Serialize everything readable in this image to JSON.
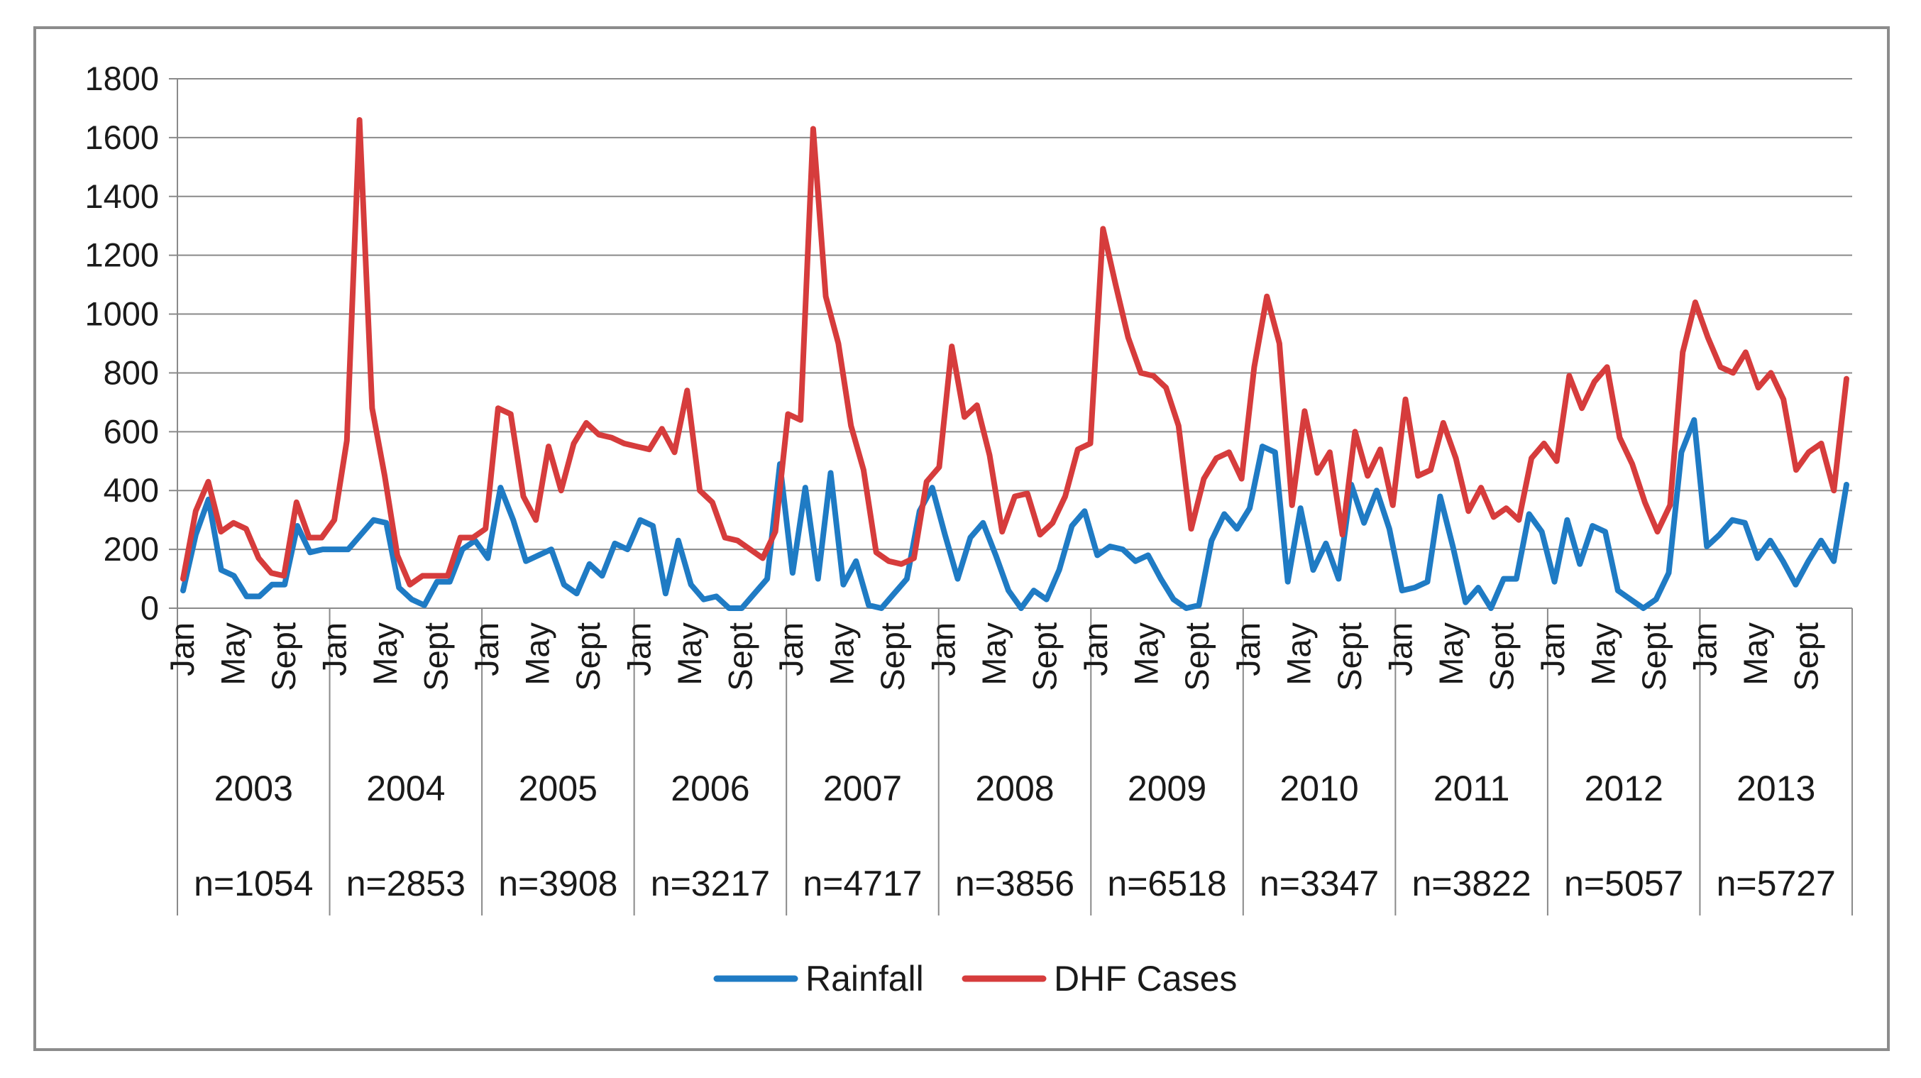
{
  "chart_data": {
    "type": "line",
    "title": "",
    "xlabel": "",
    "ylabel": "",
    "ylim": [
      0,
      1800
    ],
    "yticks": [
      0,
      200,
      400,
      600,
      800,
      1000,
      1200,
      1400,
      1600,
      1800
    ],
    "grid": true,
    "legend_position": "bottom",
    "month_tick_labels": [
      "Jan",
      "May",
      "Sept"
    ],
    "years": [
      "2003",
      "2004",
      "2005",
      "2006",
      "2007",
      "2008",
      "2009",
      "2010",
      "2011",
      "2012",
      "2013"
    ],
    "year_counts": [
      "n=1054",
      "n=2853",
      "n=3908",
      "n=3217",
      "n=4717",
      "n=3856",
      "n=6518",
      "n=3347",
      "n=3822",
      "n=5057",
      "n=5727"
    ],
    "series": [
      {
        "name": "Rainfall",
        "color": "#1f7bc4",
        "values": [
          60,
          250,
          370,
          130,
          110,
          40,
          40,
          80,
          80,
          280,
          190,
          200,
          200,
          200,
          250,
          300,
          290,
          70,
          30,
          10,
          90,
          90,
          200,
          230,
          170,
          410,
          300,
          160,
          180,
          200,
          80,
          50,
          150,
          110,
          220,
          200,
          300,
          280,
          50,
          230,
          80,
          30,
          40,
          0,
          0,
          50,
          100,
          490,
          120,
          410,
          100,
          460,
          80,
          160,
          10,
          0,
          50,
          100,
          330,
          410,
          250,
          100,
          240,
          290,
          180,
          60,
          0,
          60,
          30,
          130,
          280,
          330,
          180,
          210,
          200,
          160,
          180,
          100,
          30,
          0,
          10,
          230,
          320,
          270,
          340,
          550,
          530,
          90,
          340,
          130,
          220,
          100,
          420,
          290,
          400,
          270,
          60,
          70,
          90,
          380,
          210,
          20,
          70,
          0,
          100,
          100,
          320,
          260,
          90,
          300,
          150,
          280,
          260,
          60,
          30,
          0,
          30,
          120,
          530,
          640,
          210,
          250,
          300,
          290,
          170,
          230,
          160,
          80,
          160,
          230,
          160,
          420
        ]
      },
      {
        "name": "DHF Cases",
        "color": "#d63c3c",
        "values": [
          100,
          330,
          430,
          260,
          290,
          270,
          170,
          120,
          110,
          360,
          240,
          240,
          300,
          570,
          1660,
          680,
          450,
          180,
          80,
          110,
          110,
          110,
          240,
          240,
          270,
          680,
          660,
          380,
          300,
          550,
          400,
          560,
          630,
          590,
          580,
          560,
          550,
          540,
          610,
          530,
          740,
          400,
          360,
          240,
          230,
          200,
          170,
          260,
          660,
          640,
          1630,
          1060,
          900,
          620,
          470,
          190,
          160,
          150,
          170,
          430,
          480,
          890,
          650,
          690,
          520,
          260,
          380,
          390,
          250,
          290,
          380,
          540,
          560,
          1290,
          1100,
          920,
          800,
          790,
          750,
          620,
          270,
          440,
          510,
          530,
          440,
          820,
          1060,
          900,
          350,
          670,
          460,
          530,
          250,
          600,
          450,
          540,
          350,
          710,
          450,
          470,
          630,
          510,
          330,
          410,
          310,
          340,
          300,
          510,
          560,
          500,
          790,
          680,
          770,
          820,
          580,
          490,
          360,
          260,
          350,
          870,
          1040,
          920,
          820,
          800,
          870,
          750,
          800,
          710,
          470,
          530,
          560,
          400,
          780
        ]
      }
    ]
  }
}
